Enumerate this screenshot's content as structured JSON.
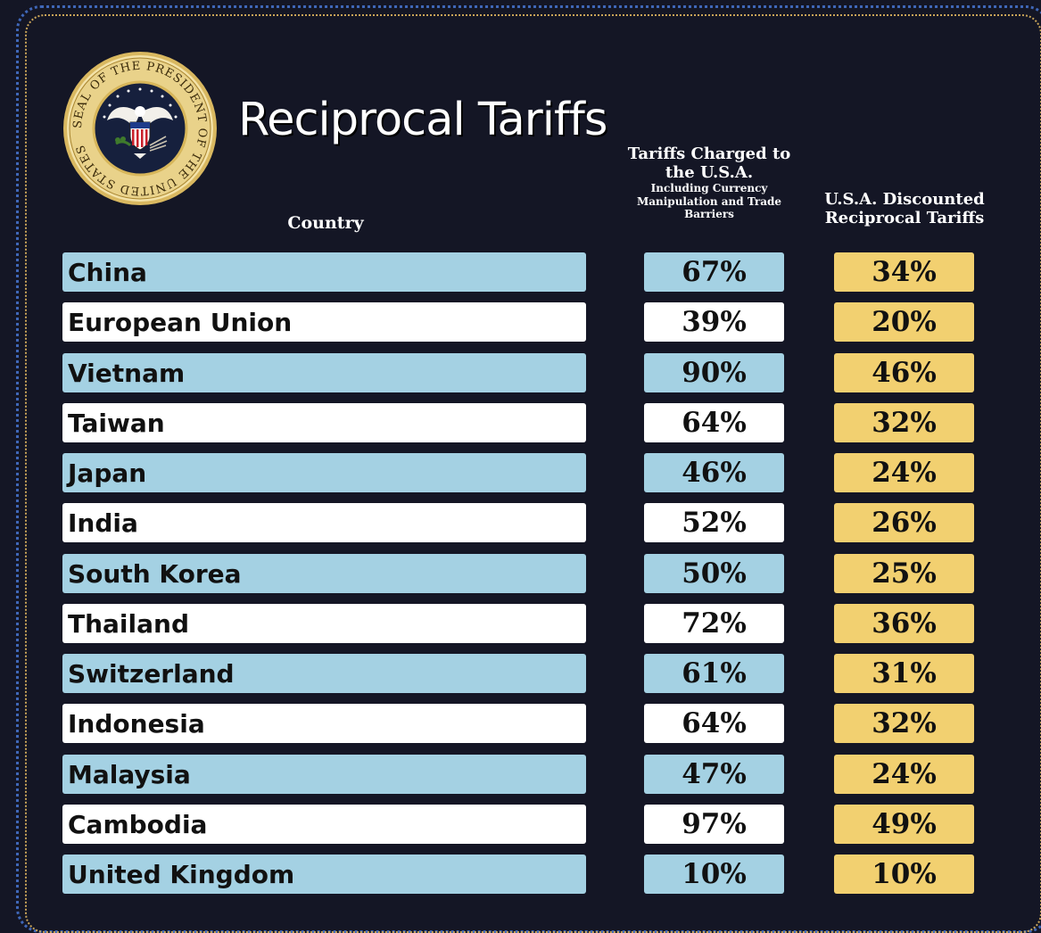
{
  "title": "Reciprocal Tariffs",
  "seal_text": "SEAL OF THE PRESIDENT OF THE UNITED STATES",
  "colors": {
    "background": "#141625",
    "blue_row": "#a4d1e3",
    "white_row": "#ffffff",
    "gold": "#f2d070"
  },
  "headers": {
    "country": "Country",
    "charged_main": "Tariffs Charged to the U.S.A.",
    "charged_sub": "Including Currency Manipulation and Trade Barriers",
    "reciprocal": "U.S.A. Discounted Reciprocal Tariffs"
  },
  "chart_data": {
    "type": "table",
    "title": "Reciprocal Tariffs",
    "columns": [
      "Country",
      "Tariffs Charged to the U.S.A. Including Currency Manipulation and Trade Barriers",
      "U.S.A. Discounted Reciprocal Tariffs"
    ],
    "rows": [
      {
        "country": "China",
        "charged": "67%",
        "reciprocal": "34%"
      },
      {
        "country": "European Union",
        "charged": "39%",
        "reciprocal": "20%"
      },
      {
        "country": "Vietnam",
        "charged": "90%",
        "reciprocal": "46%"
      },
      {
        "country": "Taiwan",
        "charged": "64%",
        "reciprocal": "32%"
      },
      {
        "country": "Japan",
        "charged": "46%",
        "reciprocal": "24%"
      },
      {
        "country": "India",
        "charged": "52%",
        "reciprocal": "26%"
      },
      {
        "country": "South Korea",
        "charged": "50%",
        "reciprocal": "25%"
      },
      {
        "country": "Thailand",
        "charged": "72%",
        "reciprocal": "36%"
      },
      {
        "country": "Switzerland",
        "charged": "61%",
        "reciprocal": "31%"
      },
      {
        "country": "Indonesia",
        "charged": "64%",
        "reciprocal": "32%"
      },
      {
        "country": "Malaysia",
        "charged": "47%",
        "reciprocal": "24%"
      },
      {
        "country": "Cambodia",
        "charged": "97%",
        "reciprocal": "49%"
      },
      {
        "country": "United Kingdom",
        "charged": "10%",
        "reciprocal": "10%"
      }
    ]
  }
}
